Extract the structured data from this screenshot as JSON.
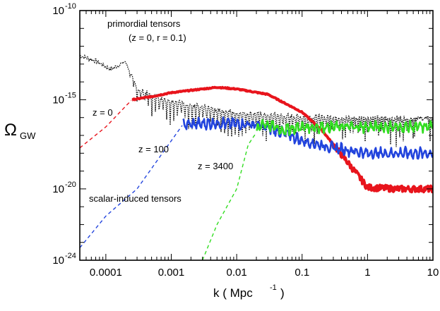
{
  "chart_data": {
    "type": "line",
    "title": "",
    "xlabel": "k ( Mpc",
    "xlabel_sup": "-1",
    "xlabel_close": ")",
    "ylabel": "Ω",
    "ylabel_sub": "GW",
    "xscale": "log",
    "yscale": "log",
    "xlim": [
      4e-05,
      10
    ],
    "ylim": [
      1e-24,
      1e-10
    ],
    "x_ticks": [
      {
        "value": 0.0001,
        "label": "0.0001"
      },
      {
        "value": 0.001,
        "label": "0.001"
      },
      {
        "value": 0.01,
        "label": "0.01"
      },
      {
        "value": 0.1,
        "label": "0.1"
      },
      {
        "value": 1,
        "label": "1"
      },
      {
        "value": 10,
        "label": "10"
      }
    ],
    "y_ticks": [
      {
        "value": 1e-24,
        "base": "10",
        "exp": "-24"
      },
      {
        "value": 1e-20,
        "base": "10",
        "exp": "-20"
      },
      {
        "value": 1e-15,
        "base": "10",
        "exp": "-15"
      },
      {
        "value": 1e-10,
        "base": "10",
        "exp": "-10"
      }
    ],
    "series": [
      {
        "name": "primordial tensors (z = 0, r = 0.1)",
        "color": "#000000",
        "style": "dotted-oscillating",
        "points": [
          [
            4e-05,
            3e-13
          ],
          [
            7e-05,
            1.5e-13
          ],
          [
            0.00012,
            5e-14
          ],
          [
            0.0002,
            1.5e-13
          ],
          [
            0.0003,
            4e-15
          ],
          [
            0.0005,
            2e-15
          ],
          [
            0.001,
            1e-15
          ],
          [
            0.003,
            4e-16
          ],
          [
            0.01,
            2e-16
          ],
          [
            0.03,
            1.5e-16
          ],
          [
            0.1,
            1.2e-16
          ],
          [
            1,
            1e-16
          ],
          [
            10,
            1e-16
          ]
        ],
        "osc_amplitude_decades": 1.6
      },
      {
        "name": "z = 0",
        "color": "#e8141c",
        "points": [
          [
            4e-05,
            2e-18
          ],
          [
            0.0001,
            3e-17
          ],
          [
            0.00025,
            1e-15
          ],
          [
            0.0005,
            1.5e-15
          ],
          [
            0.001,
            2.5e-15
          ],
          [
            0.003,
            4e-15
          ],
          [
            0.005,
            5e-15
          ],
          [
            0.01,
            4e-15
          ],
          [
            0.03,
            2e-15
          ],
          [
            0.1,
            2e-16
          ],
          [
            0.2,
            2e-17
          ],
          [
            0.5,
            3e-19
          ],
          [
            1,
            1.2e-20
          ],
          [
            3,
            1e-20
          ],
          [
            10,
            1e-20
          ]
        ],
        "dashed_below_x": 0.00025
      },
      {
        "name": "z = 100",
        "color": "#2244dd",
        "points": [
          [
            4e-05,
            5e-24
          ],
          [
            0.0001,
            3e-22
          ],
          [
            0.0003,
            1e-20
          ],
          [
            0.001,
            5e-18
          ],
          [
            0.0015,
            4e-17
          ],
          [
            0.005,
            5e-17
          ],
          [
            0.02,
            4e-17
          ],
          [
            0.05,
            1.5e-17
          ],
          [
            0.1,
            5e-18
          ],
          [
            0.3,
            2e-18
          ],
          [
            1,
            1e-18
          ],
          [
            10,
            1e-18
          ]
        ],
        "dashed_below_x": 0.0015
      },
      {
        "name": "z = 3400",
        "color": "#33dd22",
        "points": [
          [
            0.003,
            1e-24
          ],
          [
            0.005,
            1e-22
          ],
          [
            0.01,
            1e-20
          ],
          [
            0.015,
            3e-18
          ],
          [
            0.025,
            5e-17
          ],
          [
            0.05,
            2e-17
          ],
          [
            0.1,
            3e-17
          ],
          [
            1,
            3e-17
          ],
          [
            10,
            3e-17
          ]
        ],
        "dashed_below_x": 0.02
      }
    ],
    "annotations": [
      {
        "text": "primordial tensors",
        "at": [
          0.0003,
          1e-11
        ]
      },
      {
        "text": "(z = 0, r = 0.1)",
        "at": [
          0.0003,
          1e-12
        ]
      },
      {
        "text": "z = 0",
        "at": [
          0.00015,
          1e-16
        ]
      },
      {
        "text": "z = 100",
        "at": [
          0.0005,
          1e-18
        ]
      },
      {
        "text": "z = 3400",
        "at": [
          0.005,
          1e-19
        ]
      },
      {
        "text": "scalar-induced tensors",
        "at": [
          0.0002,
          1e-21
        ]
      }
    ]
  }
}
